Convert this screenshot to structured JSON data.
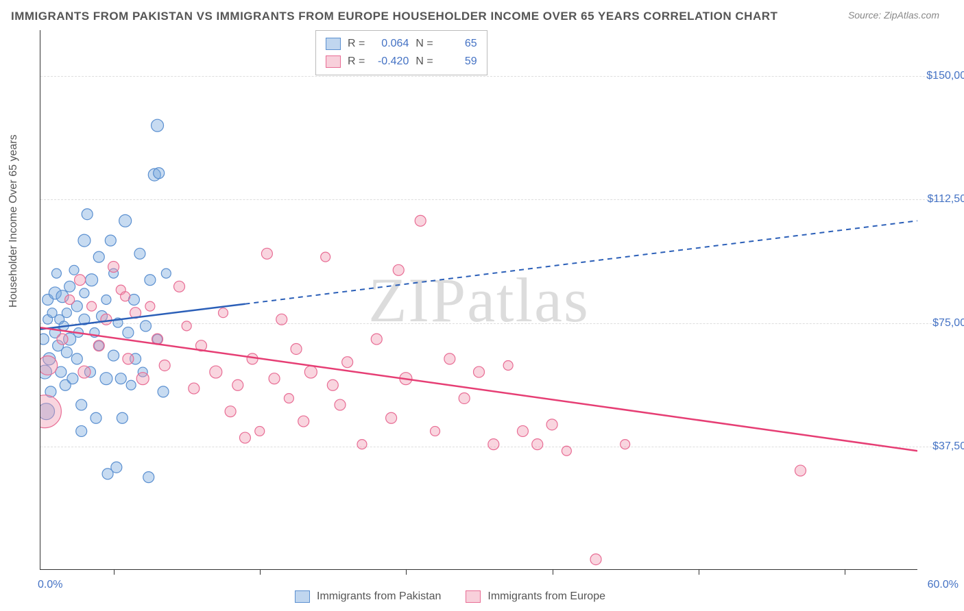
{
  "title": "IMMIGRANTS FROM PAKISTAN VS IMMIGRANTS FROM EUROPE HOUSEHOLDER INCOME OVER 65 YEARS CORRELATION CHART",
  "source": "Source: ZipAtlas.com",
  "watermark_zip": "ZIP",
  "watermark_atlas": "atlas",
  "chart": {
    "type": "scatter",
    "background_color": "#ffffff",
    "grid_color": "#dddddd",
    "axis_color": "#333333",
    "x_axis": {
      "min": 0.0,
      "max": 60.0,
      "label_min": "0.0%",
      "label_max": "60.0%",
      "tick_positions_pct": [
        5,
        15,
        25,
        35,
        45,
        55
      ]
    },
    "y_axis": {
      "title": "Householder Income Over 65 years",
      "ticks": [
        {
          "value": 37500,
          "label": "$37,500"
        },
        {
          "value": 75000,
          "label": "$75,000"
        },
        {
          "value": 112500,
          "label": "$112,500"
        },
        {
          "value": 150000,
          "label": "$150,000"
        }
      ],
      "min": 0,
      "max": 164000
    },
    "series": [
      {
        "name": "Immigrants from Pakistan",
        "color_fill": "rgba(115,165,220,0.40)",
        "color_stroke": "#5a8fd0",
        "stat_R": "0.064",
        "stat_N": "65",
        "trend": {
          "y_intercept": 73000,
          "y_at_xmax": 106000,
          "solid_until_x": 14,
          "color": "#2b5fb8"
        },
        "points": [
          {
            "x": 0.2,
            "y": 70000,
            "r": 8
          },
          {
            "x": 0.3,
            "y": 60000,
            "r": 10
          },
          {
            "x": 0.4,
            "y": 48000,
            "r": 12
          },
          {
            "x": 0.5,
            "y": 82000,
            "r": 8
          },
          {
            "x": 0.5,
            "y": 76000,
            "r": 7
          },
          {
            "x": 0.6,
            "y": 64000,
            "r": 9
          },
          {
            "x": 0.7,
            "y": 54000,
            "r": 8
          },
          {
            "x": 0.8,
            "y": 78000,
            "r": 7
          },
          {
            "x": 1.0,
            "y": 72000,
            "r": 8
          },
          {
            "x": 1.0,
            "y": 84000,
            "r": 9
          },
          {
            "x": 1.1,
            "y": 90000,
            "r": 7
          },
          {
            "x": 1.2,
            "y": 68000,
            "r": 8
          },
          {
            "x": 1.3,
            "y": 76000,
            "r": 7
          },
          {
            "x": 1.4,
            "y": 60000,
            "r": 8
          },
          {
            "x": 1.5,
            "y": 83000,
            "r": 9
          },
          {
            "x": 1.6,
            "y": 74000,
            "r": 7
          },
          {
            "x": 1.7,
            "y": 56000,
            "r": 8
          },
          {
            "x": 1.8,
            "y": 66000,
            "r": 8
          },
          {
            "x": 1.8,
            "y": 78000,
            "r": 7
          },
          {
            "x": 2.0,
            "y": 86000,
            "r": 8
          },
          {
            "x": 2.0,
            "y": 70000,
            "r": 9
          },
          {
            "x": 2.2,
            "y": 58000,
            "r": 8
          },
          {
            "x": 2.3,
            "y": 91000,
            "r": 7
          },
          {
            "x": 2.5,
            "y": 80000,
            "r": 8
          },
          {
            "x": 2.5,
            "y": 64000,
            "r": 8
          },
          {
            "x": 2.6,
            "y": 72000,
            "r": 7
          },
          {
            "x": 2.8,
            "y": 50000,
            "r": 8
          },
          {
            "x": 3.0,
            "y": 100000,
            "r": 9
          },
          {
            "x": 3.0,
            "y": 76000,
            "r": 8
          },
          {
            "x": 3.0,
            "y": 84000,
            "r": 7
          },
          {
            "x": 3.2,
            "y": 108000,
            "r": 8
          },
          {
            "x": 3.4,
            "y": 60000,
            "r": 8
          },
          {
            "x": 3.5,
            "y": 88000,
            "r": 9
          },
          {
            "x": 3.7,
            "y": 72000,
            "r": 7
          },
          {
            "x": 3.8,
            "y": 46000,
            "r": 8
          },
          {
            "x": 4.0,
            "y": 95000,
            "r": 8
          },
          {
            "x": 4.0,
            "y": 68000,
            "r": 7
          },
          {
            "x": 4.2,
            "y": 77000,
            "r": 8
          },
          {
            "x": 4.5,
            "y": 58000,
            "r": 9
          },
          {
            "x": 4.5,
            "y": 82000,
            "r": 7
          },
          {
            "x": 4.6,
            "y": 29000,
            "r": 8
          },
          {
            "x": 4.8,
            "y": 100000,
            "r": 8
          },
          {
            "x": 5.0,
            "y": 90000,
            "r": 7
          },
          {
            "x": 5.0,
            "y": 65000,
            "r": 8
          },
          {
            "x": 5.2,
            "y": 31000,
            "r": 8
          },
          {
            "x": 5.3,
            "y": 75000,
            "r": 7
          },
          {
            "x": 5.5,
            "y": 58000,
            "r": 8
          },
          {
            "x": 5.6,
            "y": 46000,
            "r": 8
          },
          {
            "x": 5.8,
            "y": 106000,
            "r": 9
          },
          {
            "x": 6.0,
            "y": 72000,
            "r": 8
          },
          {
            "x": 6.2,
            "y": 56000,
            "r": 7
          },
          {
            "x": 6.4,
            "y": 82000,
            "r": 8
          },
          {
            "x": 6.5,
            "y": 64000,
            "r": 8
          },
          {
            "x": 6.8,
            "y": 96000,
            "r": 8
          },
          {
            "x": 7.0,
            "y": 60000,
            "r": 7
          },
          {
            "x": 7.2,
            "y": 74000,
            "r": 8
          },
          {
            "x": 7.4,
            "y": 28000,
            "r": 8
          },
          {
            "x": 7.5,
            "y": 88000,
            "r": 8
          },
          {
            "x": 7.8,
            "y": 120000,
            "r": 9
          },
          {
            "x": 8.0,
            "y": 70000,
            "r": 7
          },
          {
            "x": 8.1,
            "y": 120500,
            "r": 8
          },
          {
            "x": 8.4,
            "y": 54000,
            "r": 8
          },
          {
            "x": 8.6,
            "y": 90000,
            "r": 7
          },
          {
            "x": 8.0,
            "y": 135000,
            "r": 9
          },
          {
            "x": 2.8,
            "y": 42000,
            "r": 8
          }
        ]
      },
      {
        "name": "Immigrants from Europe",
        "color_fill": "rgba(240,150,175,0.40)",
        "color_stroke": "#e86c94",
        "stat_R": "-0.420",
        "stat_N": "59",
        "trend": {
          "y_intercept": 73500,
          "y_at_xmax": 36000,
          "solid_until_x": 60,
          "color": "#e63e74"
        },
        "points": [
          {
            "x": 0.3,
            "y": 48000,
            "r": 24
          },
          {
            "x": 0.5,
            "y": 62000,
            "r": 14
          },
          {
            "x": 1.5,
            "y": 70000,
            "r": 8
          },
          {
            "x": 2.0,
            "y": 82000,
            "r": 7
          },
          {
            "x": 2.7,
            "y": 88000,
            "r": 8
          },
          {
            "x": 3.0,
            "y": 60000,
            "r": 9
          },
          {
            "x": 3.5,
            "y": 80000,
            "r": 7
          },
          {
            "x": 4.0,
            "y": 68000,
            "r": 8
          },
          {
            "x": 4.5,
            "y": 76000,
            "r": 8
          },
          {
            "x": 5.0,
            "y": 92000,
            "r": 8
          },
          {
            "x": 5.5,
            "y": 85000,
            "r": 7
          },
          {
            "x": 6.0,
            "y": 64000,
            "r": 8
          },
          {
            "x": 6.5,
            "y": 78000,
            "r": 8
          },
          {
            "x": 7.0,
            "y": 58000,
            "r": 9
          },
          {
            "x": 7.5,
            "y": 80000,
            "r": 7
          },
          {
            "x": 8.0,
            "y": 70000,
            "r": 8
          },
          {
            "x": 8.5,
            "y": 62000,
            "r": 8
          },
          {
            "x": 9.5,
            "y": 86000,
            "r": 8
          },
          {
            "x": 10,
            "y": 74000,
            "r": 7
          },
          {
            "x": 10.5,
            "y": 55000,
            "r": 8
          },
          {
            "x": 11,
            "y": 68000,
            "r": 8
          },
          {
            "x": 12,
            "y": 60000,
            "r": 9
          },
          {
            "x": 12.5,
            "y": 78000,
            "r": 7
          },
          {
            "x": 13,
            "y": 48000,
            "r": 8
          },
          {
            "x": 13.5,
            "y": 56000,
            "r": 8
          },
          {
            "x": 14,
            "y": 40000,
            "r": 8
          },
          {
            "x": 14.5,
            "y": 64000,
            "r": 8
          },
          {
            "x": 15,
            "y": 42000,
            "r": 7
          },
          {
            "x": 15.5,
            "y": 96000,
            "r": 8
          },
          {
            "x": 16,
            "y": 58000,
            "r": 8
          },
          {
            "x": 16.5,
            "y": 76000,
            "r": 8
          },
          {
            "x": 17,
            "y": 52000,
            "r": 7
          },
          {
            "x": 17.5,
            "y": 67000,
            "r": 8
          },
          {
            "x": 18,
            "y": 45000,
            "r": 8
          },
          {
            "x": 18.5,
            "y": 60000,
            "r": 9
          },
          {
            "x": 19.5,
            "y": 95000,
            "r": 7
          },
          {
            "x": 20,
            "y": 56000,
            "r": 8
          },
          {
            "x": 20.5,
            "y": 50000,
            "r": 8
          },
          {
            "x": 21,
            "y": 63000,
            "r": 8
          },
          {
            "x": 22,
            "y": 38000,
            "r": 7
          },
          {
            "x": 23,
            "y": 70000,
            "r": 8
          },
          {
            "x": 24,
            "y": 46000,
            "r": 8
          },
          {
            "x": 24.5,
            "y": 91000,
            "r": 8
          },
          {
            "x": 25,
            "y": 58000,
            "r": 9
          },
          {
            "x": 26,
            "y": 106000,
            "r": 8
          },
          {
            "x": 27,
            "y": 42000,
            "r": 7
          },
          {
            "x": 28,
            "y": 64000,
            "r": 8
          },
          {
            "x": 29,
            "y": 52000,
            "r": 8
          },
          {
            "x": 30,
            "y": 60000,
            "r": 8
          },
          {
            "x": 31,
            "y": 38000,
            "r": 8
          },
          {
            "x": 32,
            "y": 62000,
            "r": 7
          },
          {
            "x": 33,
            "y": 42000,
            "r": 8
          },
          {
            "x": 34,
            "y": 38000,
            "r": 8
          },
          {
            "x": 35,
            "y": 44000,
            "r": 8
          },
          {
            "x": 36,
            "y": 36000,
            "r": 7
          },
          {
            "x": 38,
            "y": 3000,
            "r": 8
          },
          {
            "x": 40,
            "y": 38000,
            "r": 7
          },
          {
            "x": 52,
            "y": 30000,
            "r": 8
          },
          {
            "x": 5.8,
            "y": 83000,
            "r": 7
          }
        ]
      }
    ],
    "legend_top": {
      "r_label": "R  =",
      "n_label": "N  ="
    },
    "legend_bottom": [
      {
        "swatch": "blue",
        "label": "Immigrants from Pakistan"
      },
      {
        "swatch": "pink",
        "label": "Immigrants from Europe"
      }
    ]
  }
}
